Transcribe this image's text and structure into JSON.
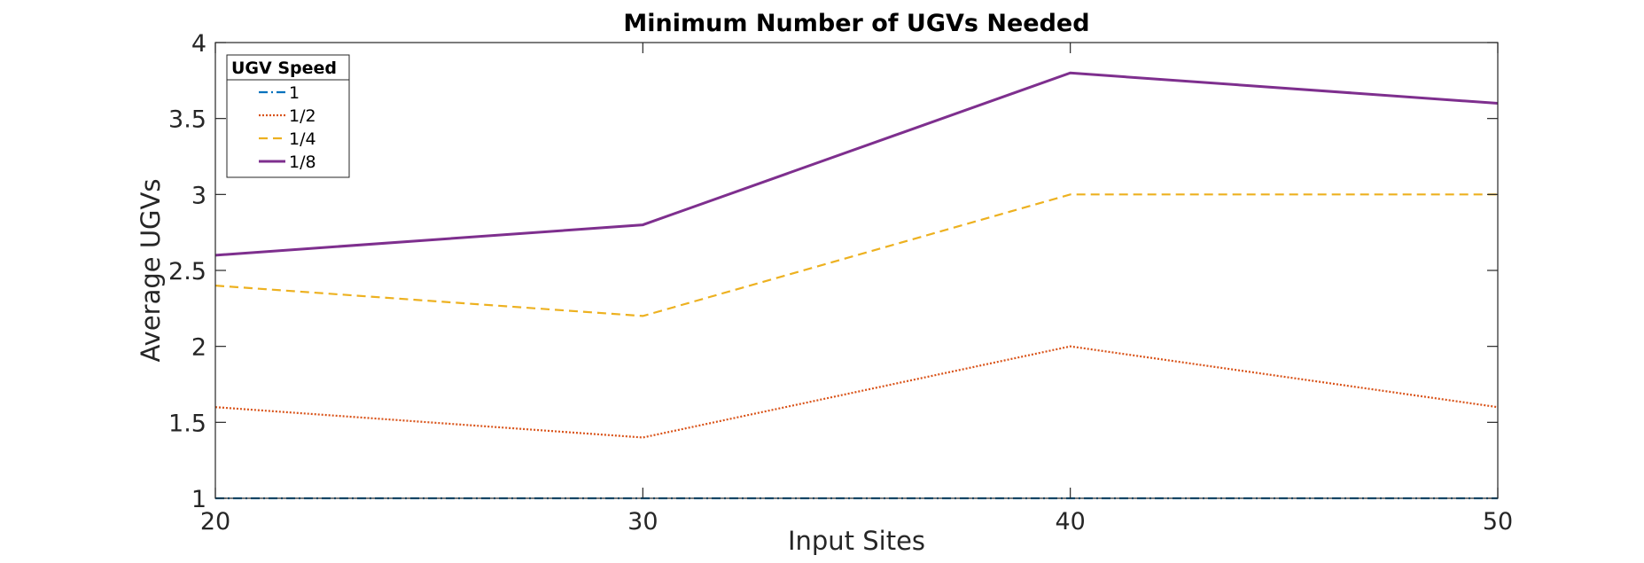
{
  "chart_data": {
    "type": "line",
    "title": "Minimum Number of UGVs Needed",
    "xlabel": "Input Sites",
    "ylabel": "Average UGVs",
    "x": [
      20,
      30,
      40,
      50
    ],
    "xlim": [
      20,
      50
    ],
    "ylim": [
      1,
      4
    ],
    "xticks": [
      "20",
      "30",
      "40",
      "50"
    ],
    "yticks": [
      "1",
      "1.5",
      "2",
      "2.5",
      "3",
      "3.5",
      "4"
    ],
    "grid": false,
    "legend": {
      "title": "UGV Speed",
      "placement": "top-left"
    },
    "series": [
      {
        "name": "1",
        "values": [
          1.0,
          1.0,
          1.0,
          1.0
        ],
        "color": "#0072BD",
        "style": "dash-dot"
      },
      {
        "name": "1/2",
        "values": [
          1.6,
          1.4,
          2.0,
          1.6
        ],
        "color": "#D95319",
        "style": "dotted"
      },
      {
        "name": "1/4",
        "values": [
          2.4,
          2.2,
          3.0,
          3.0
        ],
        "color": "#EDB120",
        "style": "dashed"
      },
      {
        "name": "1/8",
        "values": [
          2.6,
          2.8,
          3.8,
          3.6
        ],
        "color": "#7E2F8E",
        "style": "solid"
      }
    ]
  }
}
